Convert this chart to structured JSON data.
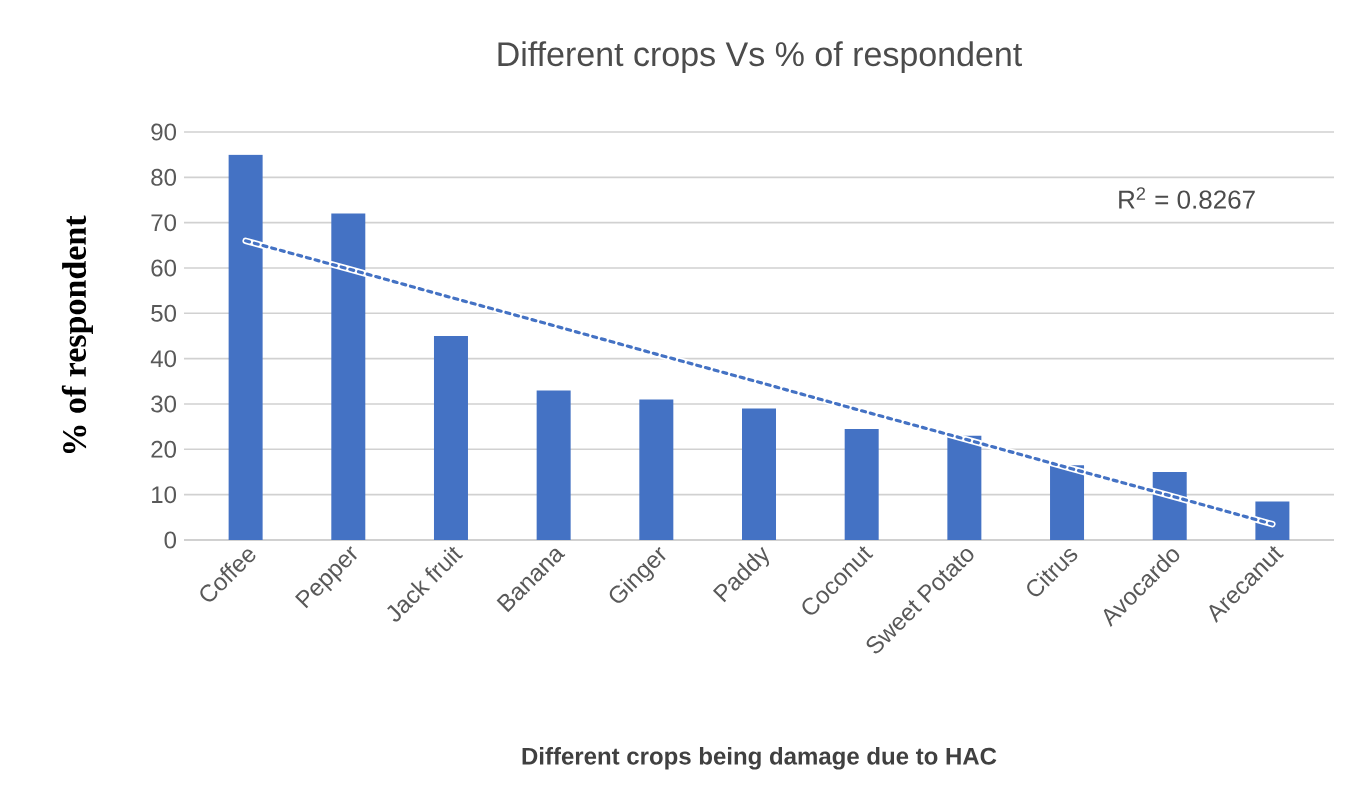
{
  "chart_data": {
    "type": "bar",
    "title": "Different crops Vs % of respondent",
    "xlabel": "Different crops being damage due to HAC",
    "ylabel": "% of respondent",
    "categories": [
      "Coffee",
      "Pepper",
      "Jack fruit",
      "Banana",
      "Ginger",
      "Paddy",
      "Coconut",
      "Sweet Potato",
      "Citrus",
      "Avocardo",
      "Arecanut"
    ],
    "series": [
      {
        "color": "#4472c4",
        "values": [
          85,
          72,
          45,
          33,
          31,
          29,
          24.5,
          23,
          16.5,
          15,
          8.5
        ]
      },
      {
        "type": "line",
        "color": "#4472c4",
        "values": [
          66,
          59.8,
          53.5,
          47.3,
          41,
          34.8,
          28.5,
          22.3,
          16,
          9.8,
          3.5
        ],
        "line_style": "dotted"
      }
    ],
    "ylim": [
      0,
      90
    ],
    "yticks": [
      0,
      10,
      20,
      30,
      40,
      50,
      60,
      70,
      80,
      90
    ],
    "grid": "y",
    "annotations": [
      "R$^{2}$ = 0.8267"
    ]
  }
}
